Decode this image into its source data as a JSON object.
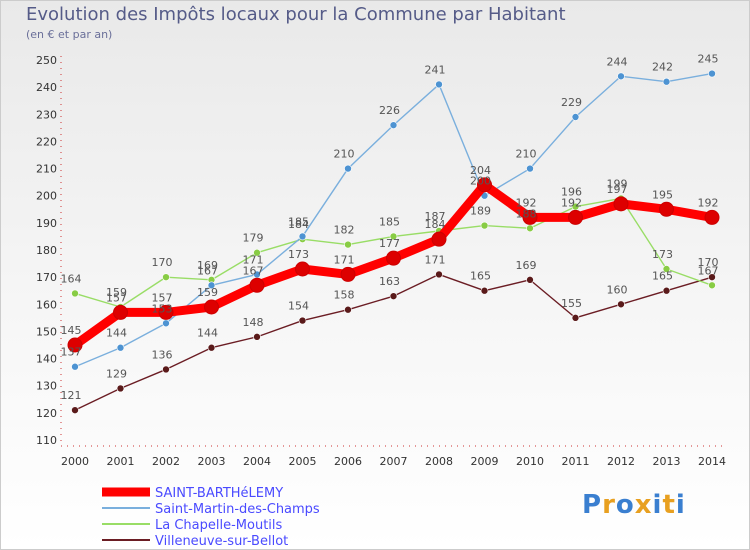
{
  "chart_data": {
    "type": "line",
    "title": "Evolution des Impôts locaux pour la Commune par Habitant",
    "subtitle": "(en € et par an)",
    "x": [
      "2000",
      "2001",
      "2002",
      "2003",
      "2004",
      "2005",
      "2006",
      "2007",
      "2008",
      "2009",
      "2010",
      "2011",
      "2012",
      "2013",
      "2014"
    ],
    "yticks": [
      110,
      120,
      130,
      140,
      150,
      160,
      170,
      180,
      190,
      200,
      210,
      220,
      230,
      240,
      250
    ],
    "ylim": [
      110,
      250
    ],
    "grid": false,
    "legend_position": "bottom-left",
    "series": [
      {
        "name": "Villeneuve-sur-Bellot",
        "color": "#6b1d24",
        "marker": "#5a1a1a",
        "values": [
          121,
          129,
          136,
          144,
          148,
          154,
          158,
          163,
          171,
          165,
          169,
          155,
          160,
          165,
          170
        ]
      },
      {
        "name": "La Chapelle-Moutils",
        "color": "#99dd66",
        "marker": "#88cc44",
        "values": [
          164,
          159,
          170,
          169,
          179,
          184,
          182,
          185,
          187,
          189,
          188,
          196,
          199,
          173,
          167
        ]
      },
      {
        "name": "Saint-Martin-des-Champs",
        "color": "#7aafdd",
        "marker": "#4d93d2",
        "values": [
          137,
          144,
          153,
          167,
          171,
          185,
          210,
          226,
          241,
          200,
          210,
          229,
          244,
          242,
          245
        ]
      },
      {
        "name": "SAINT-BARTHéLEMY",
        "color": "#ff0000",
        "marker": "#dd0000",
        "values": [
          145,
          157,
          157,
          159,
          167,
          173,
          171,
          177,
          184,
          204,
          192,
          192,
          197,
          195,
          192
        ]
      }
    ]
  },
  "logo": {
    "letters": [
      "P",
      "r",
      "o",
      "x",
      "i",
      "t",
      "i"
    ],
    "colors": [
      "#3a7fd0",
      "#e8a020",
      "#3a7fd0",
      "#e8a020",
      "#3a7fd0",
      "#e8a020",
      "#3a7fd0"
    ]
  }
}
